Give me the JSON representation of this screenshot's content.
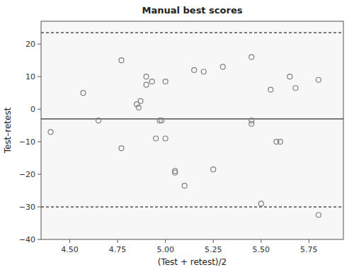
{
  "chart_data": {
    "type": "scatter",
    "title": "Manual best scores",
    "xlabel": "(Test + retest)/2",
    "ylabel": "Test–retest",
    "xlim": [
      4.35,
      5.93
    ],
    "ylim": [
      -40,
      27
    ],
    "xticks": [
      {
        "value": 4.5,
        "label": "4.50"
      },
      {
        "value": 4.75,
        "label": "4.75"
      },
      {
        "value": 5.0,
        "label": "5.00"
      },
      {
        "value": 5.25,
        "label": "5.25"
      },
      {
        "value": 5.5,
        "label": "5.50"
      },
      {
        "value": 5.75,
        "label": "5.75"
      }
    ],
    "yticks": [
      {
        "value": -40,
        "label": "−40"
      },
      {
        "value": -30,
        "label": "−30"
      },
      {
        "value": -20,
        "label": "−20"
      },
      {
        "value": -10,
        "label": "−10"
      },
      0,
      10,
      20
    ],
    "mean_line": -3.0,
    "upper_loa": 23.5,
    "lower_loa": -30.0,
    "color": "#808080",
    "marker": "circle",
    "grid": false,
    "x": [
      4.4,
      4.57,
      4.65,
      4.77,
      4.77,
      4.85,
      4.86,
      4.87,
      4.9,
      4.9,
      4.93,
      4.95,
      4.97,
      4.98,
      5.0,
      5.0,
      5.05,
      5.05,
      5.1,
      5.15,
      5.2,
      5.25,
      5.3,
      5.45,
      5.45,
      5.45,
      5.5,
      5.55,
      5.58,
      5.6,
      5.65,
      5.68,
      5.8,
      5.8
    ],
    "values": [
      -7.0,
      5.0,
      -3.5,
      15.0,
      -12.0,
      1.5,
      0.5,
      2.5,
      10.0,
      7.5,
      8.5,
      -9.0,
      -3.5,
      -3.5,
      8.5,
      -9.0,
      -19.5,
      -19.0,
      -23.5,
      12.0,
      11.5,
      -18.5,
      13.0,
      16.0,
      -3.5,
      -4.5,
      -29.0,
      6.0,
      -10.0,
      -10.0,
      10.0,
      6.5,
      9.0,
      -32.5
    ]
  }
}
